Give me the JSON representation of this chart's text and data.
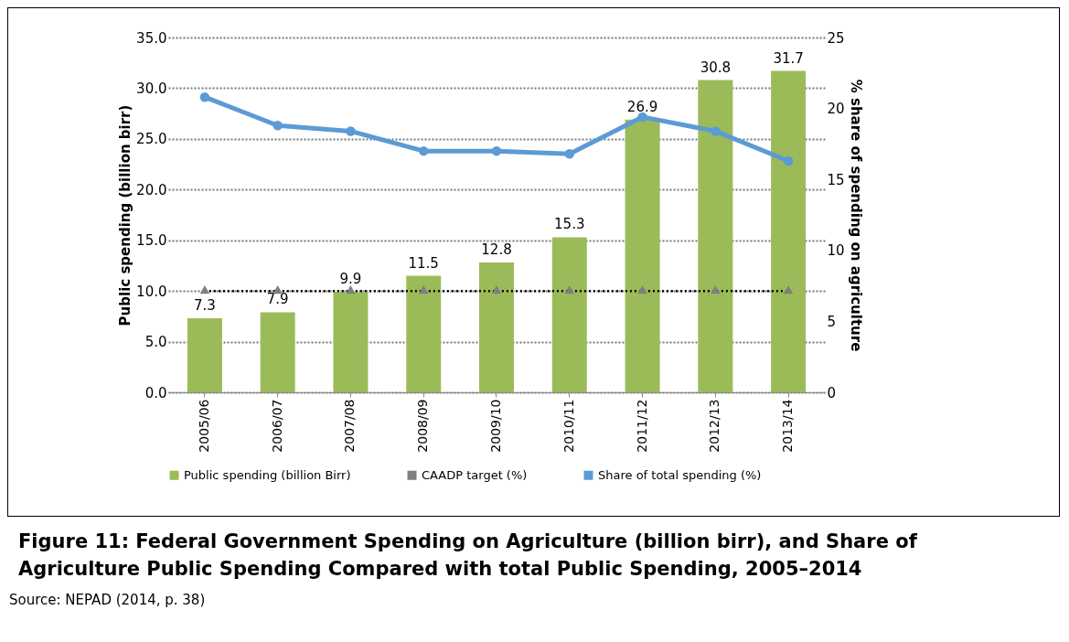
{
  "chart_data": {
    "type": "bar",
    "title": "Figure 11: Federal Government Spending on Agriculture (billion birr), and Share of Agriculture Public Spending Compared with total Public Spending, 2005–2014",
    "annotations": [
      "Source: NEPAD (2014, p. 38)"
    ],
    "ylabel": "Public spending (billion birr)",
    "y2label": "% share of spending on agriculture",
    "categories": [
      "2005/06",
      "2006/07",
      "2007/08",
      "2008/09",
      "2009/10",
      "2010/11",
      "2011/12",
      "2012/13",
      "2013/14"
    ],
    "series": [
      {
        "name": "Public spending (billion Birr)",
        "color": "#9bbb59",
        "values": [
          7.3,
          7.9,
          9.9,
          11.5,
          12.8,
          15.3,
          26.9,
          30.8,
          31.7
        ],
        "value_labels": [
          "7.3",
          "7.9",
          "9.9",
          "11.5",
          "12.8",
          "15.3",
          "26.9",
          "30.8",
          "31.7"
        ]
      },
      {
        "name": "CAADP target (%)",
        "type": "line",
        "color": "#7f7f7f",
        "marker": "triangle",
        "line_style": "dotted",
        "values": [
          10,
          10,
          10,
          10,
          10,
          10,
          10,
          10,
          10
        ]
      },
      {
        "name": "Share of total spending (%)",
        "type": "line",
        "color": "#5b9bd5",
        "marker": "circle",
        "line_style": "solid",
        "axis": "y2",
        "values": [
          20.8,
          18.8,
          18.4,
          17.0,
          17.0,
          16.8,
          19.4,
          18.4,
          16.3
        ]
      }
    ],
    "ylim": [
      0,
      35
    ],
    "yticks": [
      {
        "value": 0,
        "label": "0.0"
      },
      {
        "value": 5,
        "label": "5.0"
      },
      {
        "value": 10,
        "label": "10.0"
      },
      {
        "value": 15,
        "label": "15.0"
      },
      {
        "value": 20,
        "label": "20.0"
      },
      {
        "value": 25,
        "label": "25.0"
      },
      {
        "value": 30,
        "label": "30.0"
      },
      {
        "value": 35,
        "label": "35.0"
      }
    ],
    "y2lim": [
      0,
      25
    ],
    "y2ticks": [
      0,
      5,
      10,
      15,
      20,
      25
    ],
    "grid": "y",
    "legend": "bottom"
  }
}
